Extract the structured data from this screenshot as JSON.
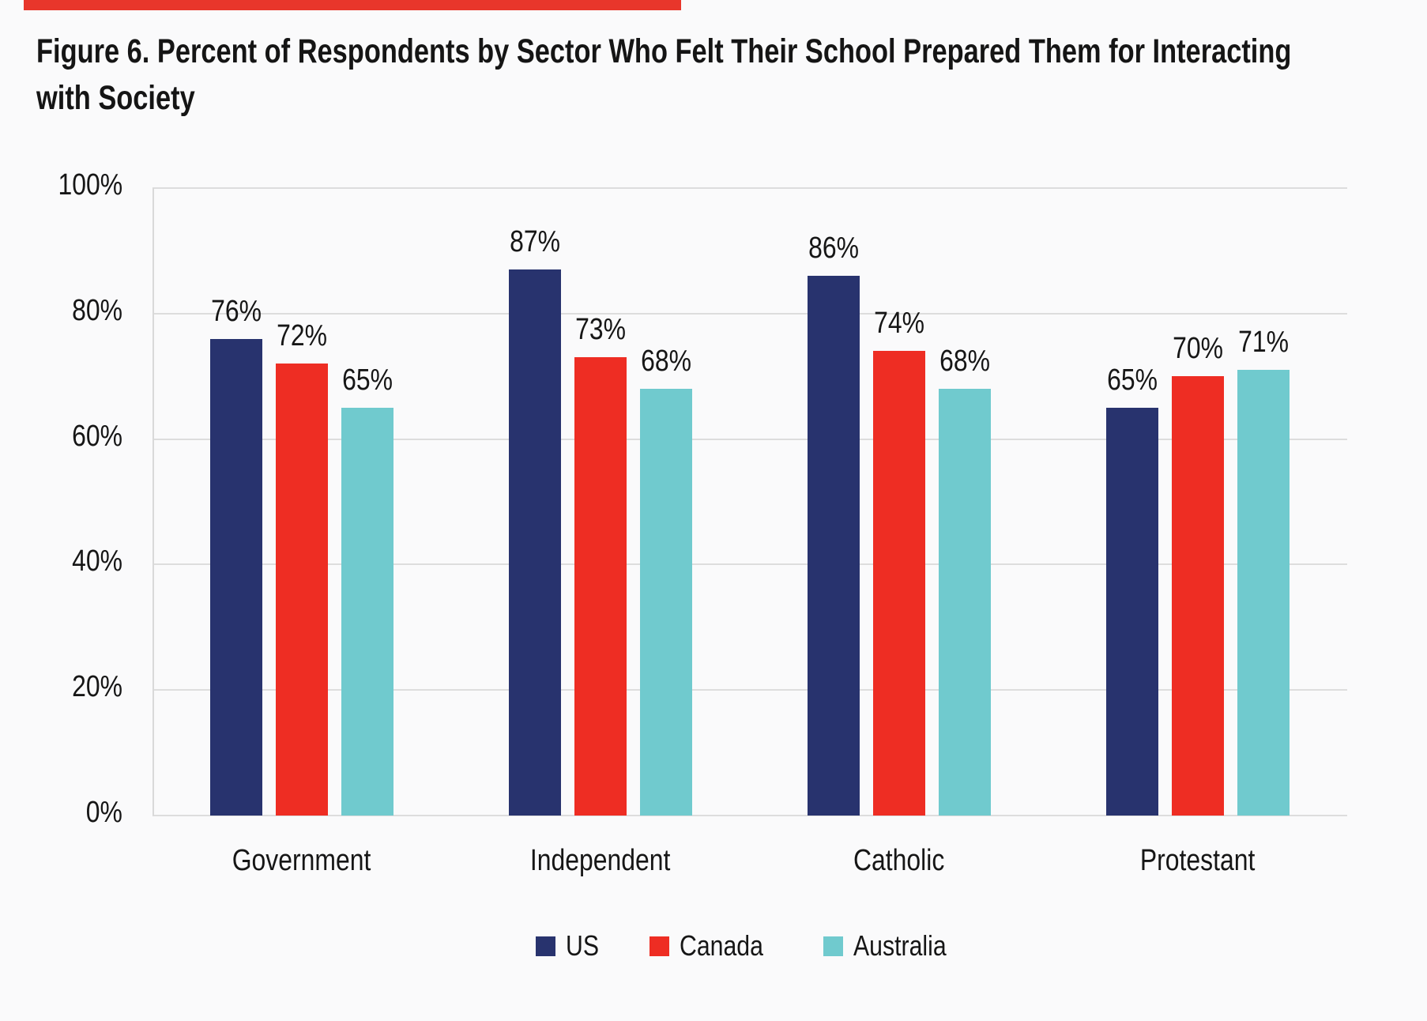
{
  "page": {
    "background": "#FAFAFB",
    "accent_bar_color": "#E8362B"
  },
  "title": {
    "line1": "Figure 6. Percent of Respondents by Sector Who Felt Their School Prepared Them for Interacting",
    "line2": "with Society"
  },
  "chart_data": {
    "type": "bar",
    "title": "Figure 6. Percent of Respondents by Sector Who Felt Their School Prepared Them for Interacting with Society",
    "categories": [
      "Government",
      "Independent",
      "Catholic",
      "Protestant"
    ],
    "series": [
      {
        "name": "US",
        "color": "#28336E",
        "values": [
          76,
          87,
          86,
          65
        ]
      },
      {
        "name": "Canada",
        "color": "#EE2D23",
        "values": [
          72,
          73,
          74,
          70
        ]
      },
      {
        "name": "Australia",
        "color": "#70CACE",
        "values": [
          65,
          68,
          68,
          71
        ]
      }
    ],
    "value_suffix": "%",
    "data_labels": [
      "76%",
      "72%",
      "65%",
      "87%",
      "73%",
      "68%",
      "86%",
      "74%",
      "68%",
      "65%",
      "70%",
      "71%"
    ],
    "y_ticks": [
      0,
      20,
      40,
      60,
      80,
      100
    ],
    "y_tick_labels": [
      "0%",
      "20%",
      "40%",
      "60%",
      "80%",
      "100%"
    ],
    "ylim": [
      0,
      100
    ],
    "xlabel": "",
    "ylabel": "",
    "grid": "horizontal",
    "legend_position": "bottom",
    "gridline_color": "#DDDDDD",
    "axis_line_color": "#D9D9D9",
    "label_color": "#161616"
  }
}
